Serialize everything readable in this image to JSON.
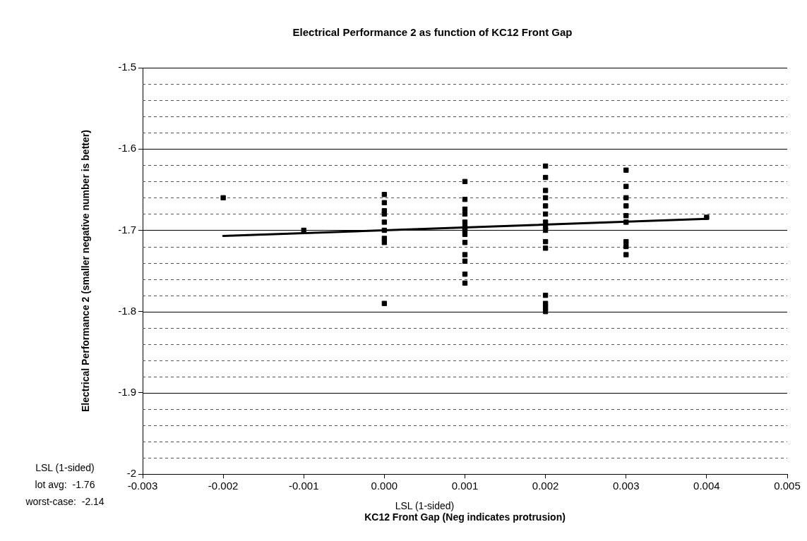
{
  "chart_data": {
    "type": "scatter",
    "title": "Electrical Performance 2 as function of KC12 Front Gap",
    "xlabel": "KC12 Front Gap (Neg indicates protrusion)",
    "ylabel": "Electrical Performance 2 (smaller negative number is better)",
    "annotations": [
      "LSL (1-sided)\nlot avg:  -1.76\nworst-case:  -2.14",
      "LSL (1-sided)"
    ],
    "series": [
      {
        "type": "scatter",
        "color": "#000000",
        "marker": "square",
        "x": [
          -0.002,
          -0.001,
          0,
          0,
          0,
          0,
          0,
          0,
          0,
          0,
          0,
          0.001,
          0.001,
          0.001,
          0.001,
          0.001,
          0.001,
          0.001,
          0.001,
          0.001,
          0.001,
          0.001,
          0.001,
          0.001,
          0.002,
          0.002,
          0.002,
          0.002,
          0.002,
          0.002,
          0.002,
          0.002,
          0.002,
          0.002,
          0.002,
          0.002,
          0.002,
          0.002,
          0.002,
          0.003,
          0.003,
          0.003,
          0.003,
          0.003,
          0.003,
          0.003,
          0.003,
          0.003,
          0.004
        ],
        "values": [
          -1.66,
          -1.7,
          -1.656,
          -1.666,
          -1.676,
          -1.68,
          -1.69,
          -1.7,
          -1.71,
          -1.715,
          -1.79,
          -1.64,
          -1.662,
          -1.674,
          -1.68,
          -1.69,
          -1.696,
          -1.7,
          -1.705,
          -1.715,
          -1.73,
          -1.738,
          -1.754,
          -1.765,
          -1.621,
          -1.635,
          -1.651,
          -1.66,
          -1.67,
          -1.68,
          -1.69,
          -1.696,
          -1.7,
          -1.714,
          -1.722,
          -1.78,
          -1.79,
          -1.8,
          -1.795,
          -1.626,
          -1.646,
          -1.66,
          -1.67,
          -1.682,
          -1.69,
          -1.714,
          -1.72,
          -1.73,
          -1.684
        ]
      },
      {
        "type": "line",
        "color": "#000000",
        "marker": "none",
        "x": [
          -0.002,
          0.004
        ],
        "values": [
          -1.707,
          -1.686
        ]
      }
    ],
    "xlim": [
      -0.003,
      0.005
    ],
    "xticks": [
      {
        "value": -0.003,
        "label": "-0.003"
      },
      {
        "value": -0.002,
        "label": "-0.002"
      },
      {
        "value": -0.001,
        "label": "-0.001"
      },
      {
        "value": 0,
        "label": "0.000"
      },
      {
        "value": 0.001,
        "label": "0.001"
      },
      {
        "value": 0.002,
        "label": "0.002"
      },
      {
        "value": 0.003,
        "label": "0.003"
      },
      {
        "value": 0.004,
        "label": "0.004"
      },
      {
        "value": 0.005,
        "label": "0.005"
      }
    ],
    "ylim": [
      -2,
      -1.5
    ],
    "yticks": [
      -2,
      {
        "value": -1.98,
        "label": null
      },
      {
        "value": -1.96,
        "label": null
      },
      {
        "value": -1.94,
        "label": null
      },
      {
        "value": -1.92,
        "label": null
      },
      -1.9,
      {
        "value": -1.88,
        "label": null
      },
      {
        "value": -1.86,
        "label": null
      },
      {
        "value": -1.84,
        "label": null
      },
      {
        "value": -1.82,
        "label": null
      },
      -1.8,
      {
        "value": -1.78,
        "label": null
      },
      {
        "value": -1.76,
        "label": null
      },
      {
        "value": -1.74,
        "label": null
      },
      {
        "value": -1.72,
        "label": null
      },
      -1.7,
      {
        "value": -1.68,
        "label": null
      },
      {
        "value": -1.66,
        "label": null
      },
      {
        "value": -1.64,
        "label": null
      },
      {
        "value": -1.62,
        "label": null
      },
      -1.6,
      {
        "value": -1.58,
        "label": null
      },
      {
        "value": -1.56,
        "label": null
      },
      {
        "value": -1.54,
        "label": null
      },
      {
        "value": -1.52,
        "label": null
      },
      -1.5
    ],
    "grid": "y",
    "legend": false
  }
}
